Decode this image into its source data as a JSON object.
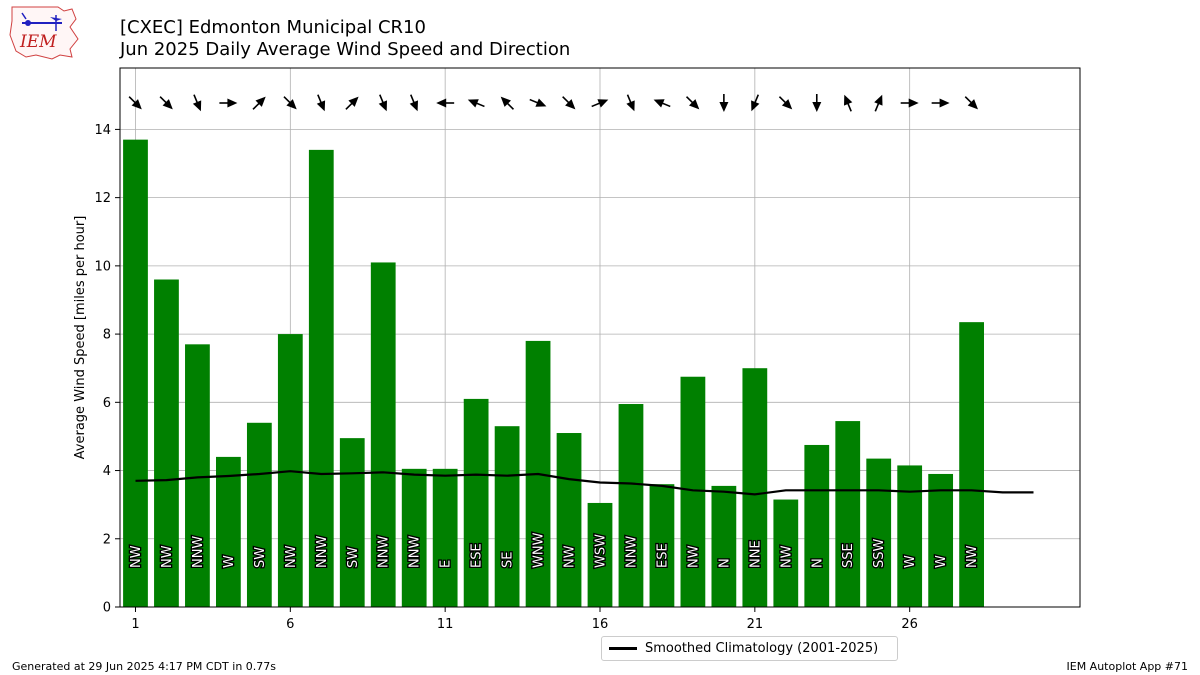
{
  "header": {
    "logo_text": "IEM",
    "title_line1": "[CXEC] Edmonton Municipal CR10",
    "title_line2": "Jun 2025 Daily Average Wind Speed and Direction"
  },
  "footer": {
    "generated": "Generated at 29 Jun 2025 4:17 PM CDT in 0.77s",
    "app": "IEM Autoplot App #71"
  },
  "legend": {
    "label": "Smoothed Climatology (2001-2025)"
  },
  "colors": {
    "bar": "#008000",
    "climatology": "#000000",
    "grid": "#b0b0b0"
  },
  "chart_data": {
    "type": "bar",
    "title": "[CXEC] Edmonton Municipal CR10",
    "subtitle": "Jun 2025 Daily Average Wind Speed and Direction",
    "xlabel": "",
    "ylabel": "Average Wind Speed [miles per hour]",
    "xlim": [
      0.5,
      31.5
    ],
    "ylim": [
      0,
      15.8
    ],
    "xticks": [
      1,
      6,
      11,
      16,
      21,
      26
    ],
    "yticks": [
      0,
      2,
      4,
      6,
      8,
      10,
      12,
      14
    ],
    "grid": true,
    "legend_position": "bottom-center",
    "days": [
      1,
      2,
      3,
      4,
      5,
      6,
      7,
      8,
      9,
      10,
      11,
      12,
      13,
      14,
      15,
      16,
      17,
      18,
      19,
      20,
      21,
      22,
      23,
      24,
      25,
      26,
      27,
      28
    ],
    "speeds": [
      13.7,
      9.6,
      7.7,
      4.4,
      5.4,
      8.0,
      13.4,
      4.95,
      10.1,
      4.05,
      4.05,
      6.1,
      5.3,
      7.8,
      5.1,
      3.05,
      5.95,
      3.6,
      6.75,
      3.55,
      7.0,
      3.15,
      4.75,
      5.45,
      4.35,
      4.15,
      3.9,
      8.35
    ],
    "directions": [
      "NW",
      "NW",
      "NNW",
      "W",
      "SW",
      "NW",
      "NNW",
      "SW",
      "NNW",
      "NNW",
      "E",
      "ESE",
      "SE",
      "WNW",
      "NW",
      "WSW",
      "NNW",
      "ESE",
      "NW",
      "N",
      "NNE",
      "NW",
      "N",
      "SSE",
      "SSW",
      "W",
      "W",
      "NW"
    ],
    "arrow_headings_deg": [
      135,
      135,
      157.5,
      90,
      45,
      135,
      157.5,
      45,
      157.5,
      157.5,
      270,
      292.5,
      315,
      112.5,
      135,
      67.5,
      157.5,
      292.5,
      135,
      180,
      202.5,
      135,
      180,
      337.5,
      22.5,
      90,
      90,
      135
    ],
    "series": [
      {
        "name": "Smoothed Climatology (2001-2025)",
        "x": [
          1,
          2,
          3,
          4,
          5,
          6,
          7,
          8,
          9,
          10,
          11,
          12,
          13,
          14,
          15,
          16,
          17,
          18,
          19,
          20,
          21,
          22,
          23,
          24,
          25,
          26,
          27,
          28,
          29,
          30
        ],
        "values": [
          3.7,
          3.72,
          3.8,
          3.84,
          3.9,
          3.98,
          3.9,
          3.92,
          3.95,
          3.88,
          3.85,
          3.88,
          3.85,
          3.9,
          3.75,
          3.65,
          3.62,
          3.55,
          3.42,
          3.38,
          3.3,
          3.42,
          3.42,
          3.42,
          3.42,
          3.38,
          3.42,
          3.42,
          3.36,
          3.36
        ]
      }
    ]
  }
}
